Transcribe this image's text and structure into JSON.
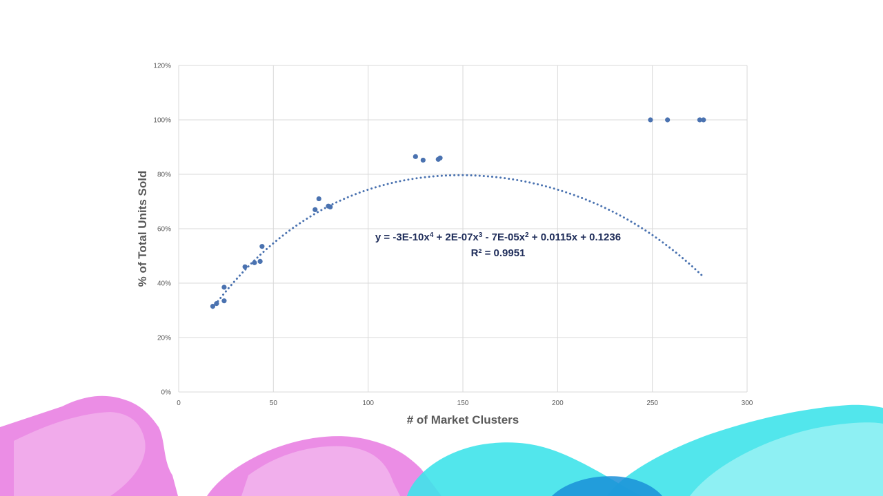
{
  "chart_data": {
    "type": "scatter",
    "xlabel": "# of Market Clusters",
    "ylabel": "% of Total Units Sold",
    "xlim": [
      0,
      300
    ],
    "ylim": [
      0,
      1.2
    ],
    "x_ticks": [
      0,
      50,
      100,
      150,
      200,
      250,
      300
    ],
    "y_ticks": [
      0,
      0.2,
      0.4,
      0.6,
      0.8,
      1.0,
      1.2
    ],
    "x_tick_labels": [
      "0",
      "50",
      "100",
      "150",
      "200",
      "250",
      "300"
    ],
    "y_tick_labels": [
      "0%",
      "20%",
      "40%",
      "60%",
      "80%",
      "100%",
      "120%"
    ],
    "grid": true,
    "legend": "none",
    "marker_color": "#4a72b0",
    "series": [
      {
        "x": [
          18,
          20,
          24,
          24,
          35,
          40,
          43,
          44,
          72,
          74,
          79,
          80,
          125,
          129,
          137,
          138,
          249,
          258,
          275,
          277
        ],
        "y": [
          0.315,
          0.325,
          0.385,
          0.335,
          0.46,
          0.475,
          0.48,
          0.535,
          0.67,
          0.71,
          0.683,
          0.68,
          0.865,
          0.852,
          0.855,
          0.86,
          1.0,
          1.0,
          1.0,
          1.0
        ]
      }
    ],
    "trendline": {
      "type": "polynomial",
      "order": 4,
      "coefficients": [
        -3e-10,
        2e-07,
        -7e-05,
        0.0115,
        0.1236
      ],
      "x_range": [
        18,
        277
      ],
      "style": "dotted",
      "equation_parts": [
        {
          "text": "y = -3E-10x",
          "sup": false
        },
        {
          "text": "4",
          "sup": true
        },
        {
          "text": " + 2E-07x",
          "sup": false
        },
        {
          "text": "3",
          "sup": true
        },
        {
          "text": " - 7E-05x",
          "sup": false
        },
        {
          "text": "2",
          "sup": true
        },
        {
          "text": " + 0.0115x + 0.1236",
          "sup": false
        }
      ],
      "r_squared_label": "R² = 0.9951"
    }
  },
  "decoration": {
    "pink": "#e879e0",
    "pink_light": "#f3b8ee",
    "cyan": "#3fe3ea",
    "cyan_light": "#9ef2f5",
    "blue": "#1a8fd8"
  }
}
